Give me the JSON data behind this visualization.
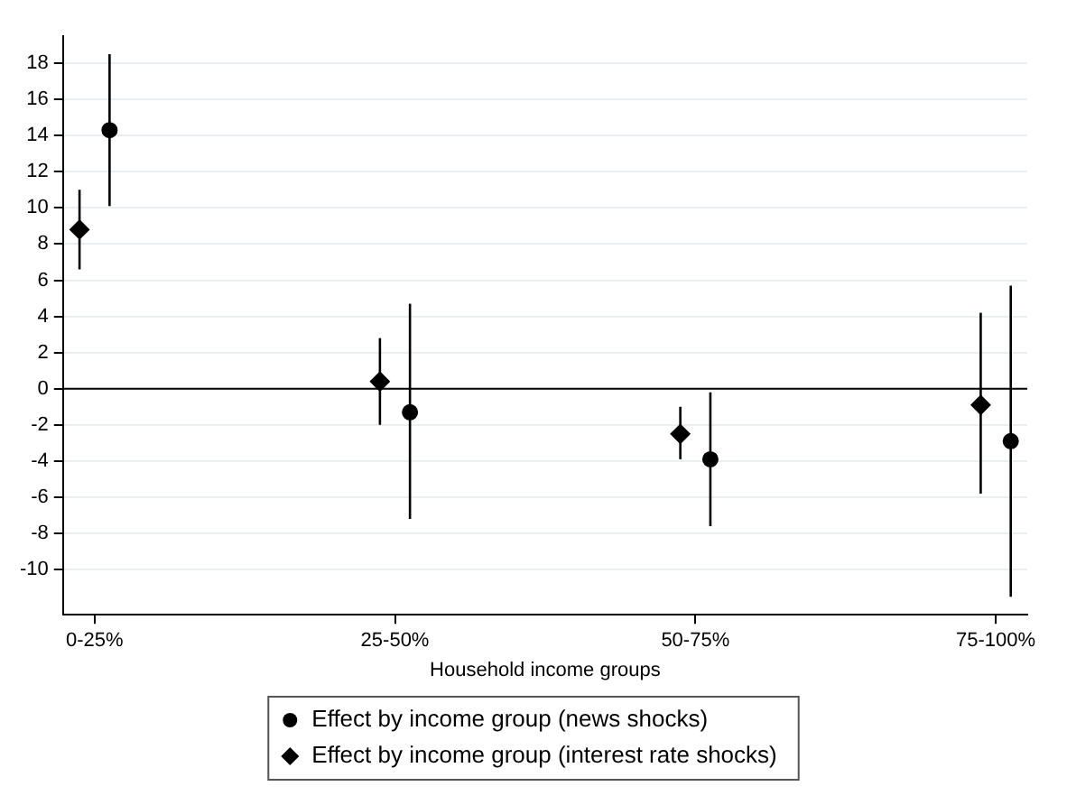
{
  "chart_data": {
    "type": "scatter",
    "xlabel": "Household income groups",
    "categories": [
      "0-25%",
      "25-50%",
      "50-75%",
      "75-100%"
    ],
    "ylim": [
      -12.5,
      19.5
    ],
    "yticks": [
      -10,
      -8,
      -6,
      -4,
      -2,
      0,
      2,
      4,
      6,
      8,
      10,
      12,
      14,
      16,
      18
    ],
    "grid": "y",
    "legend": "bottom",
    "ref_lines": [
      {
        "axis": "y",
        "value": 0,
        "color": "#000000"
      }
    ],
    "series": [
      {
        "name": "Effect by income group (news shocks)",
        "color": "#000000",
        "marker": "circle",
        "x": [
          "0-25%",
          "25-50%",
          "50-75%",
          "75-100%"
        ],
        "values": [
          14.3,
          -1.3,
          -3.9,
          -2.9
        ],
        "errors": [
          [
            10.1,
            18.5
          ],
          [
            -7.2,
            4.7
          ],
          [
            -7.6,
            -0.2
          ],
          [
            -11.5,
            5.7
          ]
        ]
      },
      {
        "name": "Effect by income group (interest rate shocks)",
        "color": "#000000",
        "marker": "diamond",
        "x": [
          "0-25%",
          "25-50%",
          "50-75%",
          "75-100%"
        ],
        "values": [
          8.8,
          0.4,
          -2.5,
          -0.9
        ],
        "errors": [
          [
            6.6,
            11.0
          ],
          [
            -2.0,
            2.8
          ],
          [
            -3.9,
            -1.0
          ],
          [
            -5.8,
            4.2
          ]
        ]
      }
    ]
  }
}
